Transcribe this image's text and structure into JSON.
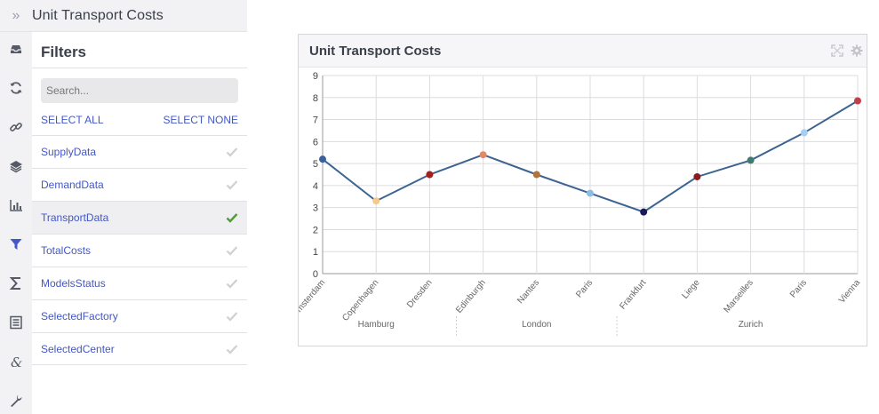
{
  "app": {
    "title": "Unit Transport Costs"
  },
  "rail": {
    "icons": [
      "inbox-icon",
      "refresh-icon",
      "link-icon",
      "layers-icon",
      "bar-chart-icon",
      "filter-icon",
      "sigma-icon",
      "list-doc-icon",
      "ampersand-icon",
      "wrench-icon"
    ],
    "active": "filter-icon",
    "active_color": "#4257c8",
    "icon_color": "#555a66"
  },
  "filters": {
    "title": "Filters",
    "search_placeholder": "Search...",
    "select_all": "SELECT ALL",
    "select_none": "SELECT NONE",
    "items": [
      {
        "label": "SupplyData",
        "selected": false
      },
      {
        "label": "DemandData",
        "selected": false
      },
      {
        "label": "TransportData",
        "selected": true
      },
      {
        "label": "TotalCosts",
        "selected": false
      },
      {
        "label": "ModelsStatus",
        "selected": false
      },
      {
        "label": "SelectedFactory",
        "selected": false
      },
      {
        "label": "SelectedCenter",
        "selected": false
      }
    ],
    "check_color_selected": "#4f9a3c",
    "check_color_unselected": "#cfcfd4"
  },
  "card": {
    "title": "Unit Transport Costs"
  },
  "chart_data": {
    "type": "line",
    "x": [
      "Amsterdam",
      "Copenhagen",
      "Dresden",
      "Edinburgh",
      "Nantes",
      "Paris",
      "Frankfurt",
      "Liege",
      "Marseilles",
      "Paris",
      "Vienna"
    ],
    "x_shown": [
      "msterdam",
      "Copenhagen",
      "Dresden",
      "Edinburgh",
      "Nantes",
      "Paris",
      "Frankfurt",
      "Liege",
      "Marseilles",
      "Paris",
      "Vienna"
    ],
    "groups": [
      {
        "label": "Hamburg",
        "count": 3
      },
      {
        "label": "London",
        "count": 3
      },
      {
        "label": "Zurich",
        "count": 5
      }
    ],
    "series": [
      {
        "values": [
          5.2,
          3.3,
          4.5,
          5.4,
          4.5,
          3.65,
          2.8,
          4.4,
          5.15,
          6.4,
          7.85
        ]
      }
    ],
    "point_colors": [
      "#3a5f9a",
      "#f5c98a",
      "#a3201f",
      "#e08a6a",
      "#b0743a",
      "#8fbde0",
      "#1a1a5a",
      "#8c1c1c",
      "#3d7a70",
      "#a7cdef",
      "#c0404a"
    ],
    "line_color": "#3d6392",
    "ylim": [
      0,
      9
    ],
    "yticks": [
      0,
      1,
      2,
      3,
      4,
      5,
      6,
      7,
      8,
      9
    ],
    "grid": true
  }
}
